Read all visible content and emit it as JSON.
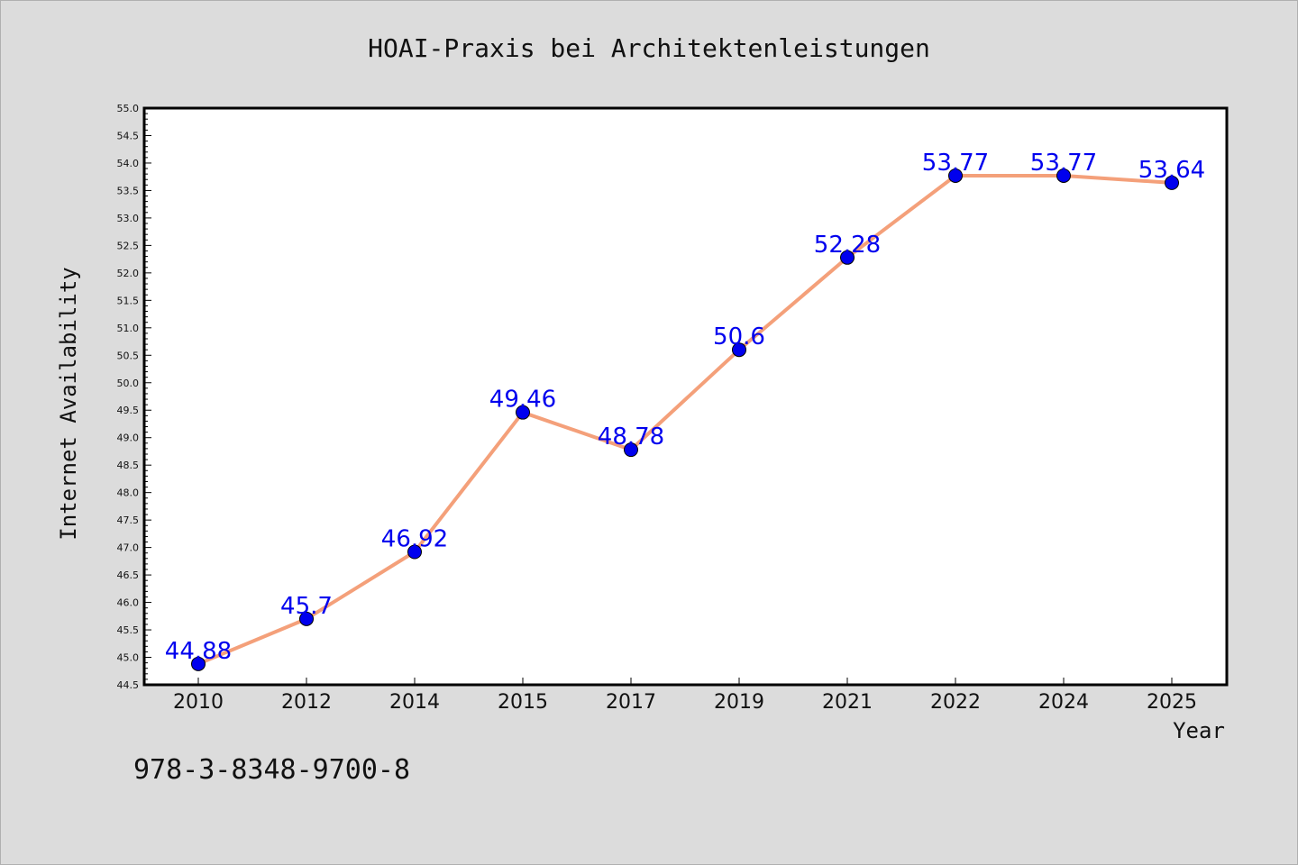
{
  "chart_data": {
    "type": "line",
    "title": "HOAI-Praxis bei Architektenleistungen",
    "xlabel": "Year",
    "ylabel": "Internet Availability",
    "categories": [
      "2010",
      "2012",
      "2014",
      "2015",
      "2017",
      "2019",
      "2021",
      "2022",
      "2024",
      "2025"
    ],
    "series": [
      {
        "values": [
          44.88,
          45.7,
          46.92,
          49.46,
          48.78,
          50.6,
          52.28,
          53.77,
          53.77,
          53.64
        ],
        "labels": [
          "44.88",
          "45.7",
          "46.92",
          "49.46",
          "48.78",
          "50.6",
          "52.28",
          "53.77",
          "53.77",
          "53.64"
        ],
        "line_color": "#f4a07a",
        "marker_color": "#0000ee"
      }
    ],
    "ylim": [
      44.5,
      55.0
    ],
    "yticks": [
      "44.5",
      "45.0",
      "45.5",
      "46.0",
      "46.5",
      "47.0",
      "47.5",
      "48.0",
      "48.5",
      "49.0",
      "49.5",
      "50.0",
      "50.5",
      "51.0",
      "51.5",
      "52.0",
      "52.5",
      "53.0",
      "53.5",
      "54.0",
      "54.5",
      "55.0"
    ],
    "grid": false,
    "footer": "978-3-8348-9700-8",
    "colors": {
      "background": "#dcdcdc",
      "plot_background": "#ffffff",
      "label_color": "#0000ee"
    }
  }
}
